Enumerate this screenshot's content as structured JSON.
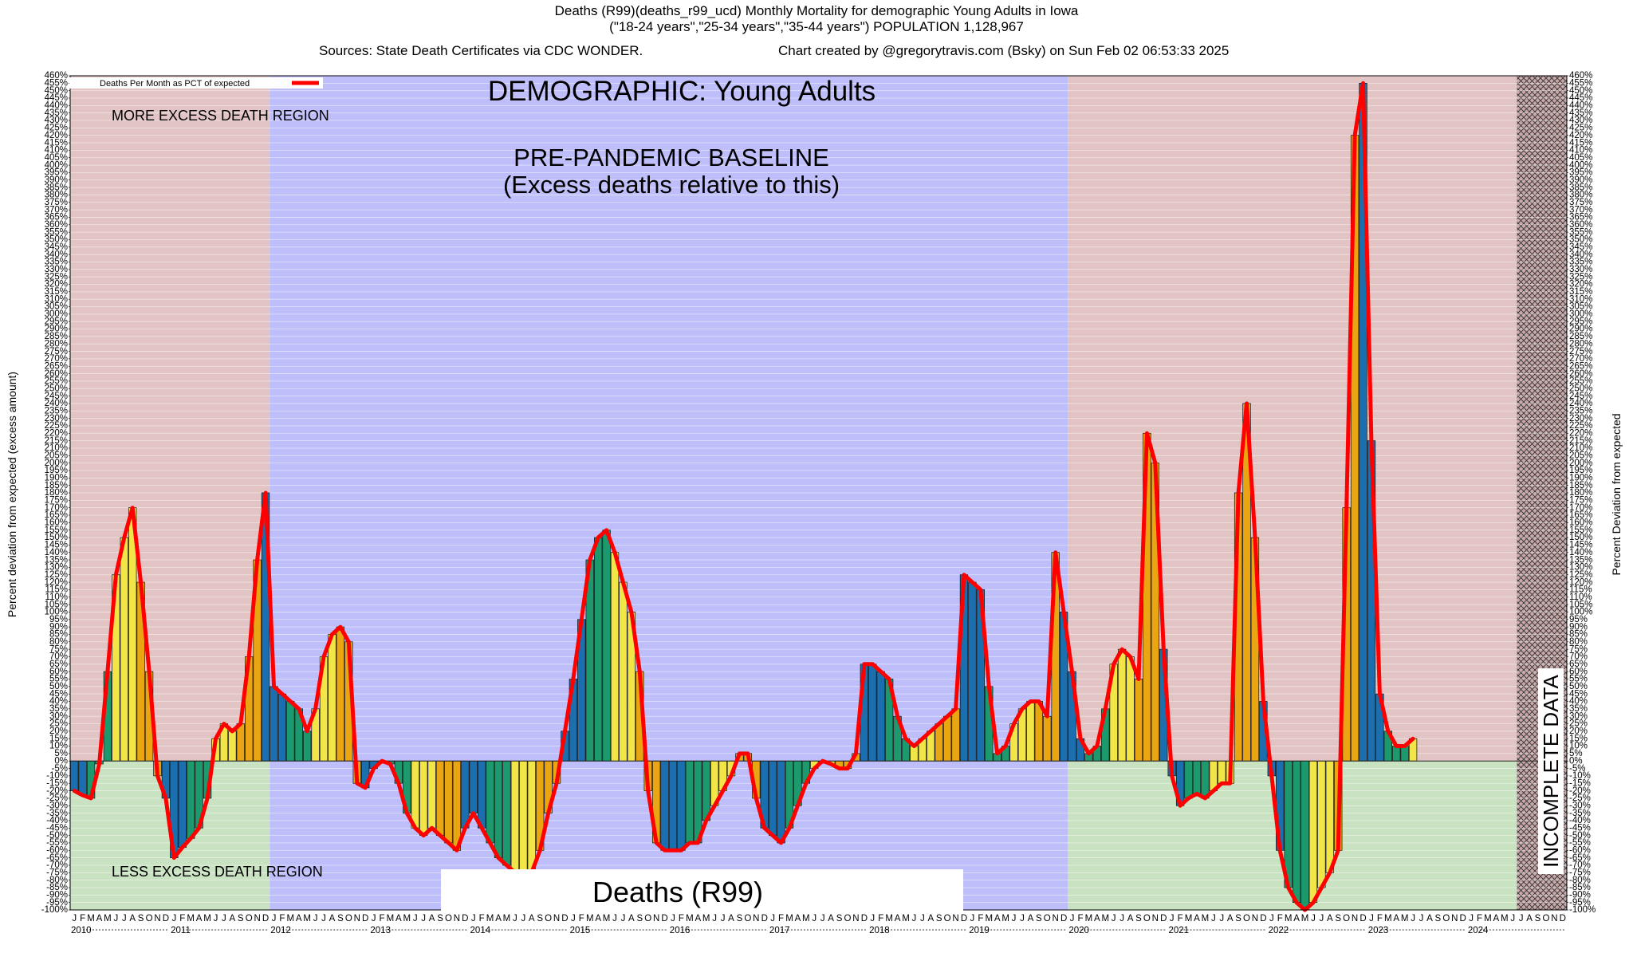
{
  "title": {
    "line1": "Deaths (R99)(deaths_r99_ucd) Monthly Mortality for demographic Young Adults in Iowa",
    "line2": "(\"18-24 years\",\"25-34 years\",\"35-44 years\") POPULATION 1,128,967",
    "sources": "Sources: State Death Certificates via CDC WONDER.",
    "created": "Chart created by @gregorytravis.com (Bsky) on Sun Feb 02 06:53:33 2025"
  },
  "annotations": {
    "demographic": "DEMOGRAPHIC: Young Adults",
    "baseline_line1": "PRE-PANDEMIC BASELINE",
    "baseline_line2": "(Excess deaths relative to this)",
    "more_region": "MORE EXCESS DEATH REGION",
    "less_region": "LESS EXCESS DEATH REGION",
    "cause_box": "Deaths (R99)",
    "incomplete": "INCOMPLETE DATA"
  },
  "legend": {
    "label": "Deaths Per Month as PCT of expected",
    "color": "#ff0000"
  },
  "colors": {
    "excess_region": "#e2c4c4",
    "less_region": "#c9e2c2",
    "baseline_region": "#bebefb",
    "line": "#ff0000",
    "season_winter": "#1b6fae",
    "season_spring": "#1c9a6e",
    "season_summer": "#f1e548",
    "season_fall": "#e9a512"
  },
  "chart_data": {
    "type": "bar",
    "ylabel_left": "Percent deviation from expected (excess amount)",
    "ylabel_right": "Percent Deviation from expected",
    "ylim": [
      -100,
      460
    ],
    "ytick_step": 5,
    "grid": true,
    "legend_position": "top-left",
    "baseline_period": [
      "2012-01",
      "2019-12"
    ],
    "incomplete_period": [
      "2024-07",
      "2024-12"
    ],
    "month_letters": [
      "J",
      "F",
      "M",
      "A",
      "M",
      "J",
      "J",
      "A",
      "S",
      "O",
      "N",
      "D"
    ],
    "years": [
      "2010",
      "2011",
      "2012",
      "2013",
      "2014",
      "2015",
      "2016",
      "2017",
      "2018",
      "2019",
      "2020",
      "2021",
      "2022",
      "2023",
      "2024"
    ],
    "series": [
      {
        "type": "bar",
        "values": [
          -20,
          -23,
          -25,
          -2,
          60,
          125,
          150,
          170,
          120,
          60,
          -10,
          -25,
          -65,
          -58,
          -52,
          -45,
          -25,
          15,
          25,
          20,
          25,
          70,
          135,
          180,
          50,
          45,
          40,
          35,
          20,
          35,
          70,
          85,
          90,
          80,
          -15,
          -18,
          -5,
          0,
          -2,
          -15,
          -35,
          -45,
          -50,
          -45,
          -50,
          -55,
          -60,
          -45,
          -35,
          -45,
          -55,
          -65,
          -70,
          -75,
          -80,
          -75,
          -60,
          -35,
          -15,
          20,
          55,
          95,
          135,
          150,
          155,
          140,
          120,
          100,
          60,
          -20,
          -55,
          -60,
          -60,
          -60,
          -55,
          -55,
          -40,
          -30,
          -20,
          -10,
          5,
          5,
          -25,
          -45,
          -50,
          -55,
          -45,
          -30,
          -15,
          -5,
          0,
          -2,
          -5,
          -5,
          5,
          65,
          65,
          60,
          55,
          30,
          15,
          10,
          15,
          20,
          25,
          30,
          35,
          125,
          120,
          115,
          50,
          5,
          10,
          25,
          35,
          40,
          40,
          30,
          140,
          100,
          60,
          15,
          5,
          10,
          35,
          65,
          75,
          70,
          55,
          220,
          200,
          75,
          -10,
          -30,
          -25,
          -22,
          -25,
          -20,
          -15,
          -15,
          180,
          240,
          150,
          40,
          -10,
          -60,
          -85,
          -95,
          -100,
          -95,
          -85,
          -75,
          -60,
          170,
          420,
          455,
          215,
          45,
          20,
          10,
          10,
          15
        ]
      },
      {
        "type": "line",
        "values": [
          -20,
          -23,
          -25,
          -2,
          60,
          125,
          150,
          170,
          120,
          60,
          -10,
          -25,
          -65,
          -58,
          -52,
          -45,
          -25,
          15,
          25,
          20,
          25,
          70,
          135,
          180,
          50,
          45,
          40,
          35,
          20,
          35,
          70,
          85,
          90,
          80,
          -15,
          -18,
          -5,
          0,
          -2,
          -15,
          -35,
          -45,
          -50,
          -45,
          -50,
          -55,
          -60,
          -45,
          -35,
          -45,
          -55,
          -65,
          -70,
          -75,
          -80,
          -75,
          -60,
          -35,
          -15,
          20,
          55,
          95,
          135,
          150,
          155,
          140,
          120,
          100,
          60,
          -20,
          -55,
          -60,
          -60,
          -60,
          -55,
          -55,
          -40,
          -30,
          -20,
          -10,
          5,
          5,
          -25,
          -45,
          -50,
          -55,
          -45,
          -30,
          -15,
          -5,
          0,
          -2,
          -5,
          -5,
          5,
          65,
          65,
          60,
          55,
          30,
          15,
          10,
          15,
          20,
          25,
          30,
          35,
          125,
          120,
          115,
          50,
          5,
          10,
          25,
          35,
          40,
          40,
          30,
          140,
          100,
          60,
          15,
          5,
          10,
          35,
          65,
          75,
          70,
          55,
          220,
          200,
          75,
          -10,
          -30,
          -25,
          -22,
          -25,
          -20,
          -15,
          -15,
          180,
          240,
          150,
          40,
          -10,
          -60,
          -85,
          -95,
          -100,
          -95,
          -85,
          -75,
          -60,
          170,
          420,
          455,
          215,
          45,
          20,
          10,
          10,
          15
        ]
      }
    ]
  }
}
